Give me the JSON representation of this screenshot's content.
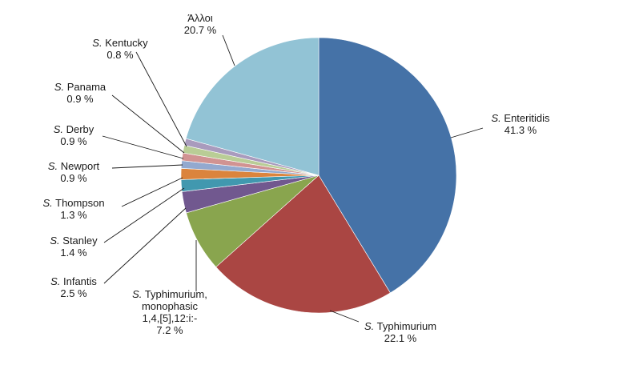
{
  "chart_data": {
    "type": "pie",
    "start_angle_deg": 0,
    "direction": "clockwise",
    "slices": [
      {
        "genus_abbrev": "S.",
        "name": "Enteritidis",
        "value": 41.3,
        "value_label": "41.3 %",
        "color": "#4572A7"
      },
      {
        "genus_abbrev": "S.",
        "name": "Typhimurium",
        "value": 22.1,
        "value_label": "22.1 %",
        "color": "#AA4643"
      },
      {
        "genus_abbrev": "S.",
        "name_lines": [
          "Typhimurium,",
          "monophasic",
          "1,4,[5],12:i:-"
        ],
        "value": 7.2,
        "value_label": "7.2 %",
        "color": "#89A54E"
      },
      {
        "genus_abbrev": "S.",
        "name": "Infantis",
        "value": 2.5,
        "value_label": "2.5 %",
        "color": "#71588F"
      },
      {
        "genus_abbrev": "S.",
        "name": "Stanley",
        "value": 1.4,
        "value_label": "1.4 %",
        "color": "#4198AF"
      },
      {
        "genus_abbrev": "S.",
        "name": "Thompson",
        "value": 1.3,
        "value_label": "1.3 %",
        "color": "#DB843D"
      },
      {
        "genus_abbrev": "S.",
        "name": "Newport",
        "value": 0.9,
        "value_label": "0.9 %",
        "color": "#93A9CF"
      },
      {
        "genus_abbrev": "S.",
        "name": "Derby",
        "value": 0.9,
        "value_label": "0.9 %",
        "color": "#D19392"
      },
      {
        "genus_abbrev": "S.",
        "name": "Panama",
        "value": 0.9,
        "value_label": "0.9 %",
        "color": "#B9CD96"
      },
      {
        "genus_abbrev": "S.",
        "name": "Kentucky",
        "value": 0.8,
        "value_label": "0.8 %",
        "color": "#A99BBD"
      },
      {
        "genus_abbrev": "",
        "name": "Άλλοι",
        "value": 20.7,
        "value_label": "20.7 %",
        "color": "#92C3D5"
      }
    ]
  }
}
